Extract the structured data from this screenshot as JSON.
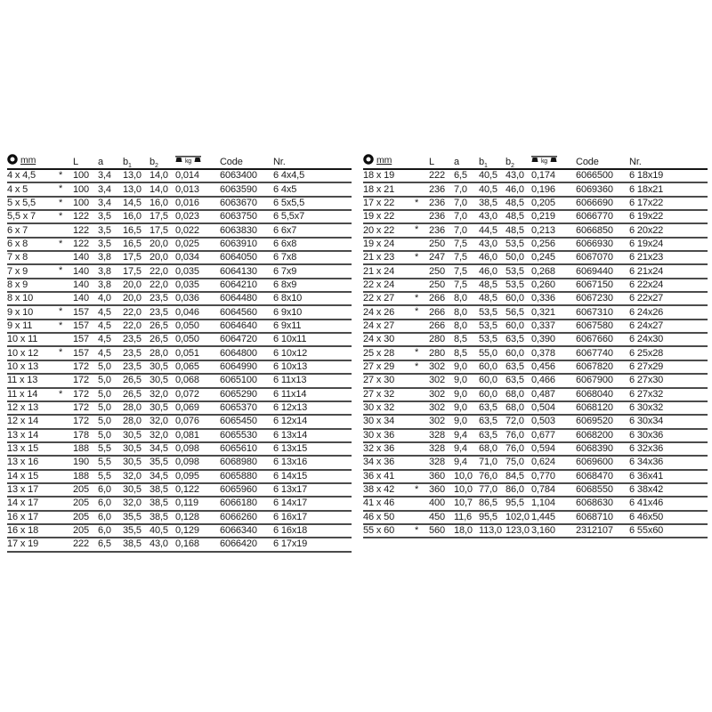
{
  "page": {
    "background": "#ffffff",
    "text_color": "#1a1a1a",
    "row_line_color": "#4b4b4b",
    "header_line_color": "#161616"
  },
  "header": {
    "size_unit": "mm",
    "length_label": "L",
    "a_label": "a",
    "b_label": "b",
    "b1_sub": "1",
    "b2_sub": "2",
    "weight_unit": "kg",
    "code_label": "Code",
    "nr_label": "Nr.",
    "star_marker": "*"
  },
  "columns": [
    "size",
    "star",
    "L",
    "a",
    "b1",
    "b2",
    "weight_kg",
    "Code",
    "Nr."
  ],
  "tables": [
    {
      "name": "left",
      "rows": [
        [
          "4 x 4,5",
          "*",
          "100",
          "3,4",
          "13,0",
          "14,0",
          "0,014",
          "6063400",
          "6 4x4,5"
        ],
        [
          "4 x 5",
          "*",
          "100",
          "3,4",
          "13,0",
          "14,0",
          "0,013",
          "6063590",
          "6 4x5"
        ],
        [
          "5 x 5,5",
          "*",
          "100",
          "3,4",
          "14,5",
          "16,0",
          "0,016",
          "6063670",
          "6 5x5,5"
        ],
        [
          "5,5 x 7",
          "*",
          "122",
          "3,5",
          "16,0",
          "17,5",
          "0,023",
          "6063750",
          "6 5,5x7"
        ],
        [
          "6 x 7",
          "",
          "122",
          "3,5",
          "16,5",
          "17,5",
          "0,022",
          "6063830",
          "6 6x7"
        ],
        [
          "6 x 8",
          "*",
          "122",
          "3,5",
          "16,5",
          "20,0",
          "0,025",
          "6063910",
          "6 6x8"
        ],
        [
          "7 x 8",
          "",
          "140",
          "3,8",
          "17,5",
          "20,0",
          "0,034",
          "6064050",
          "6 7x8"
        ],
        [
          "7 x 9",
          "*",
          "140",
          "3,8",
          "17,5",
          "22,0",
          "0,035",
          "6064130",
          "6 7x9"
        ],
        [
          "8 x 9",
          "",
          "140",
          "3,8",
          "20,0",
          "22,0",
          "0,035",
          "6064210",
          "6 8x9"
        ],
        [
          "8 x 10",
          "",
          "140",
          "4,0",
          "20,0",
          "23,5",
          "0,036",
          "6064480",
          "6 8x10"
        ],
        [
          "9 x 10",
          "*",
          "157",
          "4,5",
          "22,0",
          "23,5",
          "0,046",
          "6064560",
          "6 9x10"
        ],
        [
          "9 x 11",
          "*",
          "157",
          "4,5",
          "22,0",
          "26,5",
          "0,050",
          "6064640",
          "6 9x11"
        ],
        [
          "10 x 11",
          "",
          "157",
          "4,5",
          "23,5",
          "26,5",
          "0,050",
          "6064720",
          "6 10x11"
        ],
        [
          "10 x 12",
          "*",
          "157",
          "4,5",
          "23,5",
          "28,0",
          "0,051",
          "6064800",
          "6 10x12"
        ],
        [
          "10 x 13",
          "",
          "172",
          "5,0",
          "23,5",
          "30,5",
          "0,065",
          "6064990",
          "6 10x13"
        ],
        [
          "11 x 13",
          "",
          "172",
          "5,0",
          "26,5",
          "30,5",
          "0,068",
          "6065100",
          "6 11x13"
        ],
        [
          "11 x 14",
          "*",
          "172",
          "5,0",
          "26,5",
          "32,0",
          "0,072",
          "6065290",
          "6 11x14"
        ],
        [
          "12 x 13",
          "",
          "172",
          "5,0",
          "28,0",
          "30,5",
          "0,069",
          "6065370",
          "6 12x13"
        ],
        [
          "12 x 14",
          "",
          "172",
          "5,0",
          "28,0",
          "32,0",
          "0,076",
          "6065450",
          "6 12x14"
        ],
        [
          "13 x 14",
          "",
          "178",
          "5,0",
          "30,5",
          "32,0",
          "0,081",
          "6065530",
          "6 13x14"
        ],
        [
          "13 x 15",
          "",
          "188",
          "5,5",
          "30,5",
          "34,5",
          "0,098",
          "6065610",
          "6 13x15"
        ],
        [
          "13 x 16",
          "",
          "190",
          "5,5",
          "30,5",
          "35,5",
          "0,098",
          "6068980",
          "6 13x16"
        ],
        [
          "14 x 15",
          "",
          "188",
          "5,5",
          "32,0",
          "34,5",
          "0,095",
          "6065880",
          "6 14x15"
        ],
        [
          "13 x 17",
          "",
          "205",
          "6,0",
          "30,5",
          "38,5",
          "0,122",
          "6065960",
          "6 13x17"
        ],
        [
          "14 x 17",
          "",
          "205",
          "6,0",
          "32,0",
          "38,5",
          "0,119",
          "6066180",
          "6 14x17"
        ],
        [
          "16 x 17",
          "",
          "205",
          "6,0",
          "35,5",
          "38,5",
          "0,128",
          "6066260",
          "6 16x17"
        ],
        [
          "16 x 18",
          "",
          "205",
          "6,0",
          "35,5",
          "40,5",
          "0,129",
          "6066340",
          "6 16x18"
        ],
        [
          "17 x 19",
          "",
          "222",
          "6,5",
          "38,5",
          "43,0",
          "0,168",
          "6066420",
          "6 17x19"
        ]
      ]
    },
    {
      "name": "right",
      "rows": [
        [
          "18 x 19",
          "",
          "222",
          "6,5",
          "40,5",
          "43,0",
          "0,174",
          "6066500",
          "6 18x19"
        ],
        [
          "18 x 21",
          "",
          "236",
          "7,0",
          "40,5",
          "46,0",
          "0,196",
          "6069360",
          "6 18x21"
        ],
        [
          "17 x 22",
          "*",
          "236",
          "7,0",
          "38,5",
          "48,5",
          "0,205",
          "6066690",
          "6 17x22"
        ],
        [
          "19 x 22",
          "",
          "236",
          "7,0",
          "43,0",
          "48,5",
          "0,219",
          "6066770",
          "6 19x22"
        ],
        [
          "20 x 22",
          "*",
          "236",
          "7,0",
          "44,5",
          "48,5",
          "0,213",
          "6066850",
          "6 20x22"
        ],
        [
          "19 x 24",
          "",
          "250",
          "7,5",
          "43,0",
          "53,5",
          "0,256",
          "6066930",
          "6 19x24"
        ],
        [
          "21 x 23",
          "*",
          "247",
          "7,5",
          "46,0",
          "50,0",
          "0,245",
          "6067070",
          "6 21x23"
        ],
        [
          "21 x 24",
          "",
          "250",
          "7,5",
          "46,0",
          "53,5",
          "0,268",
          "6069440",
          "6 21x24"
        ],
        [
          "22 x 24",
          "",
          "250",
          "7,5",
          "48,5",
          "53,5",
          "0,260",
          "6067150",
          "6 22x24"
        ],
        [
          "22 x 27",
          "*",
          "266",
          "8,0",
          "48,5",
          "60,0",
          "0,336",
          "6067230",
          "6 22x27"
        ],
        [
          "24 x 26",
          "*",
          "266",
          "8,0",
          "53,5",
          "56,5",
          "0,321",
          "6067310",
          "6 24x26"
        ],
        [
          "24 x 27",
          "",
          "266",
          "8,0",
          "53,5",
          "60,0",
          "0,337",
          "6067580",
          "6 24x27"
        ],
        [
          "24 x 30",
          "",
          "280",
          "8,5",
          "53,5",
          "63,5",
          "0,390",
          "6067660",
          "6 24x30"
        ],
        [
          "25 x 28",
          "*",
          "280",
          "8,5",
          "55,0",
          "60,0",
          "0,378",
          "6067740",
          "6 25x28"
        ],
        [
          "27 x 29",
          "*",
          "302",
          "9,0",
          "60,0",
          "63,5",
          "0,456",
          "6067820",
          "6 27x29"
        ],
        [
          "27 x 30",
          "",
          "302",
          "9,0",
          "60,0",
          "63,5",
          "0,466",
          "6067900",
          "6 27x30"
        ],
        [
          "27 x 32",
          "",
          "302",
          "9,0",
          "60,0",
          "68,0",
          "0,487",
          "6068040",
          "6 27x32"
        ],
        [
          "30 x 32",
          "",
          "302",
          "9,0",
          "63,5",
          "68,0",
          "0,504",
          "6068120",
          "6 30x32"
        ],
        [
          "30 x 34",
          "",
          "302",
          "9,0",
          "63,5",
          "72,0",
          "0,503",
          "6069520",
          "6 30x34"
        ],
        [
          "30 x 36",
          "",
          "328",
          "9,4",
          "63,5",
          "76,0",
          "0,677",
          "6068200",
          "6 30x36"
        ],
        [
          "32 x 36",
          "",
          "328",
          "9,4",
          "68,0",
          "76,0",
          "0,594",
          "6068390",
          "6 32x36"
        ],
        [
          "34 x 36",
          "",
          "328",
          "9,4",
          "71,0",
          "75,0",
          "0,624",
          "6069600",
          "6 34x36"
        ],
        [
          "36 x 41",
          "",
          "360",
          "10,0",
          "76,0",
          "84,5",
          "0,770",
          "6068470",
          "6 36x41"
        ],
        [
          "38 x 42",
          "*",
          "360",
          "10,0",
          "77,0",
          "86,0",
          "0,784",
          "6068550",
          "6 38x42"
        ],
        [
          "41 x 46",
          "",
          "400",
          "10,7",
          "86,5",
          "95,5",
          "1,104",
          "6068630",
          "6 41x46"
        ],
        [
          "46 x 50",
          "",
          "450",
          "11,6",
          "95,5",
          "102,0",
          "1,445",
          "6068710",
          "6 46x50"
        ],
        [
          "55 x 60",
          "*",
          "560",
          "18,0",
          "113,0",
          "123,0",
          "3,160",
          "2312107",
          "6 55x60"
        ]
      ]
    }
  ]
}
